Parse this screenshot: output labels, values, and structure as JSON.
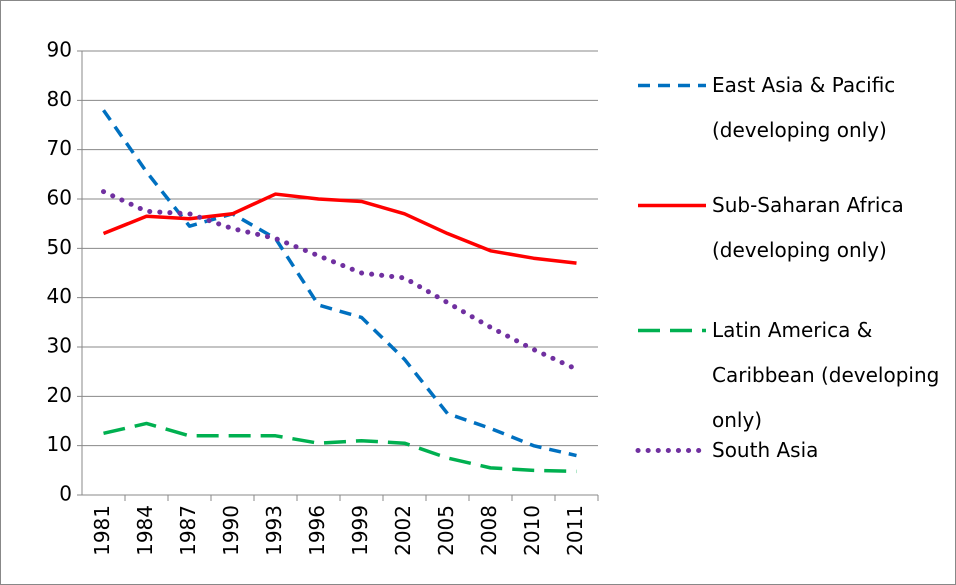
{
  "chart_data": {
    "type": "line",
    "categories": [
      "1981",
      "1984",
      "1987",
      "1990",
      "1993",
      "1996",
      "1999",
      "2002",
      "2005",
      "2008",
      "2010",
      "2011"
    ],
    "series": [
      {
        "name": "East Asia & Pacific (developing only)",
        "color": "#0070c0",
        "style": "dashed",
        "values": [
          78,
          65.5,
          54.5,
          57,
          52,
          38.5,
          36,
          27.5,
          16.5,
          13.5,
          10,
          8
        ]
      },
      {
        "name": "Sub-Saharan Africa (developing only)",
        "color": "#ff0000",
        "style": "solid",
        "values": [
          53,
          56.5,
          56,
          57,
          61,
          60,
          59.5,
          57,
          53,
          49.5,
          48,
          47
        ]
      },
      {
        "name": "Latin America & Caribbean (developing only)",
        "color": "#00b050",
        "style": "long-dash",
        "values": [
          12.5,
          14.5,
          12,
          12,
          12,
          10.5,
          11,
          10.5,
          7.5,
          5.5,
          5,
          4.8
        ]
      },
      {
        "name": "South Asia",
        "color": "#7030a0",
        "style": "dotted",
        "values": [
          61.5,
          57.5,
          57,
          54,
          52,
          48.5,
          45,
          44,
          39,
          34,
          29.5,
          25.5
        ]
      }
    ],
    "ylim": [
      0,
      90
    ],
    "yticks": [
      0,
      10,
      20,
      30,
      40,
      50,
      60,
      70,
      80,
      90
    ],
    "grid": true,
    "legend": "right"
  }
}
